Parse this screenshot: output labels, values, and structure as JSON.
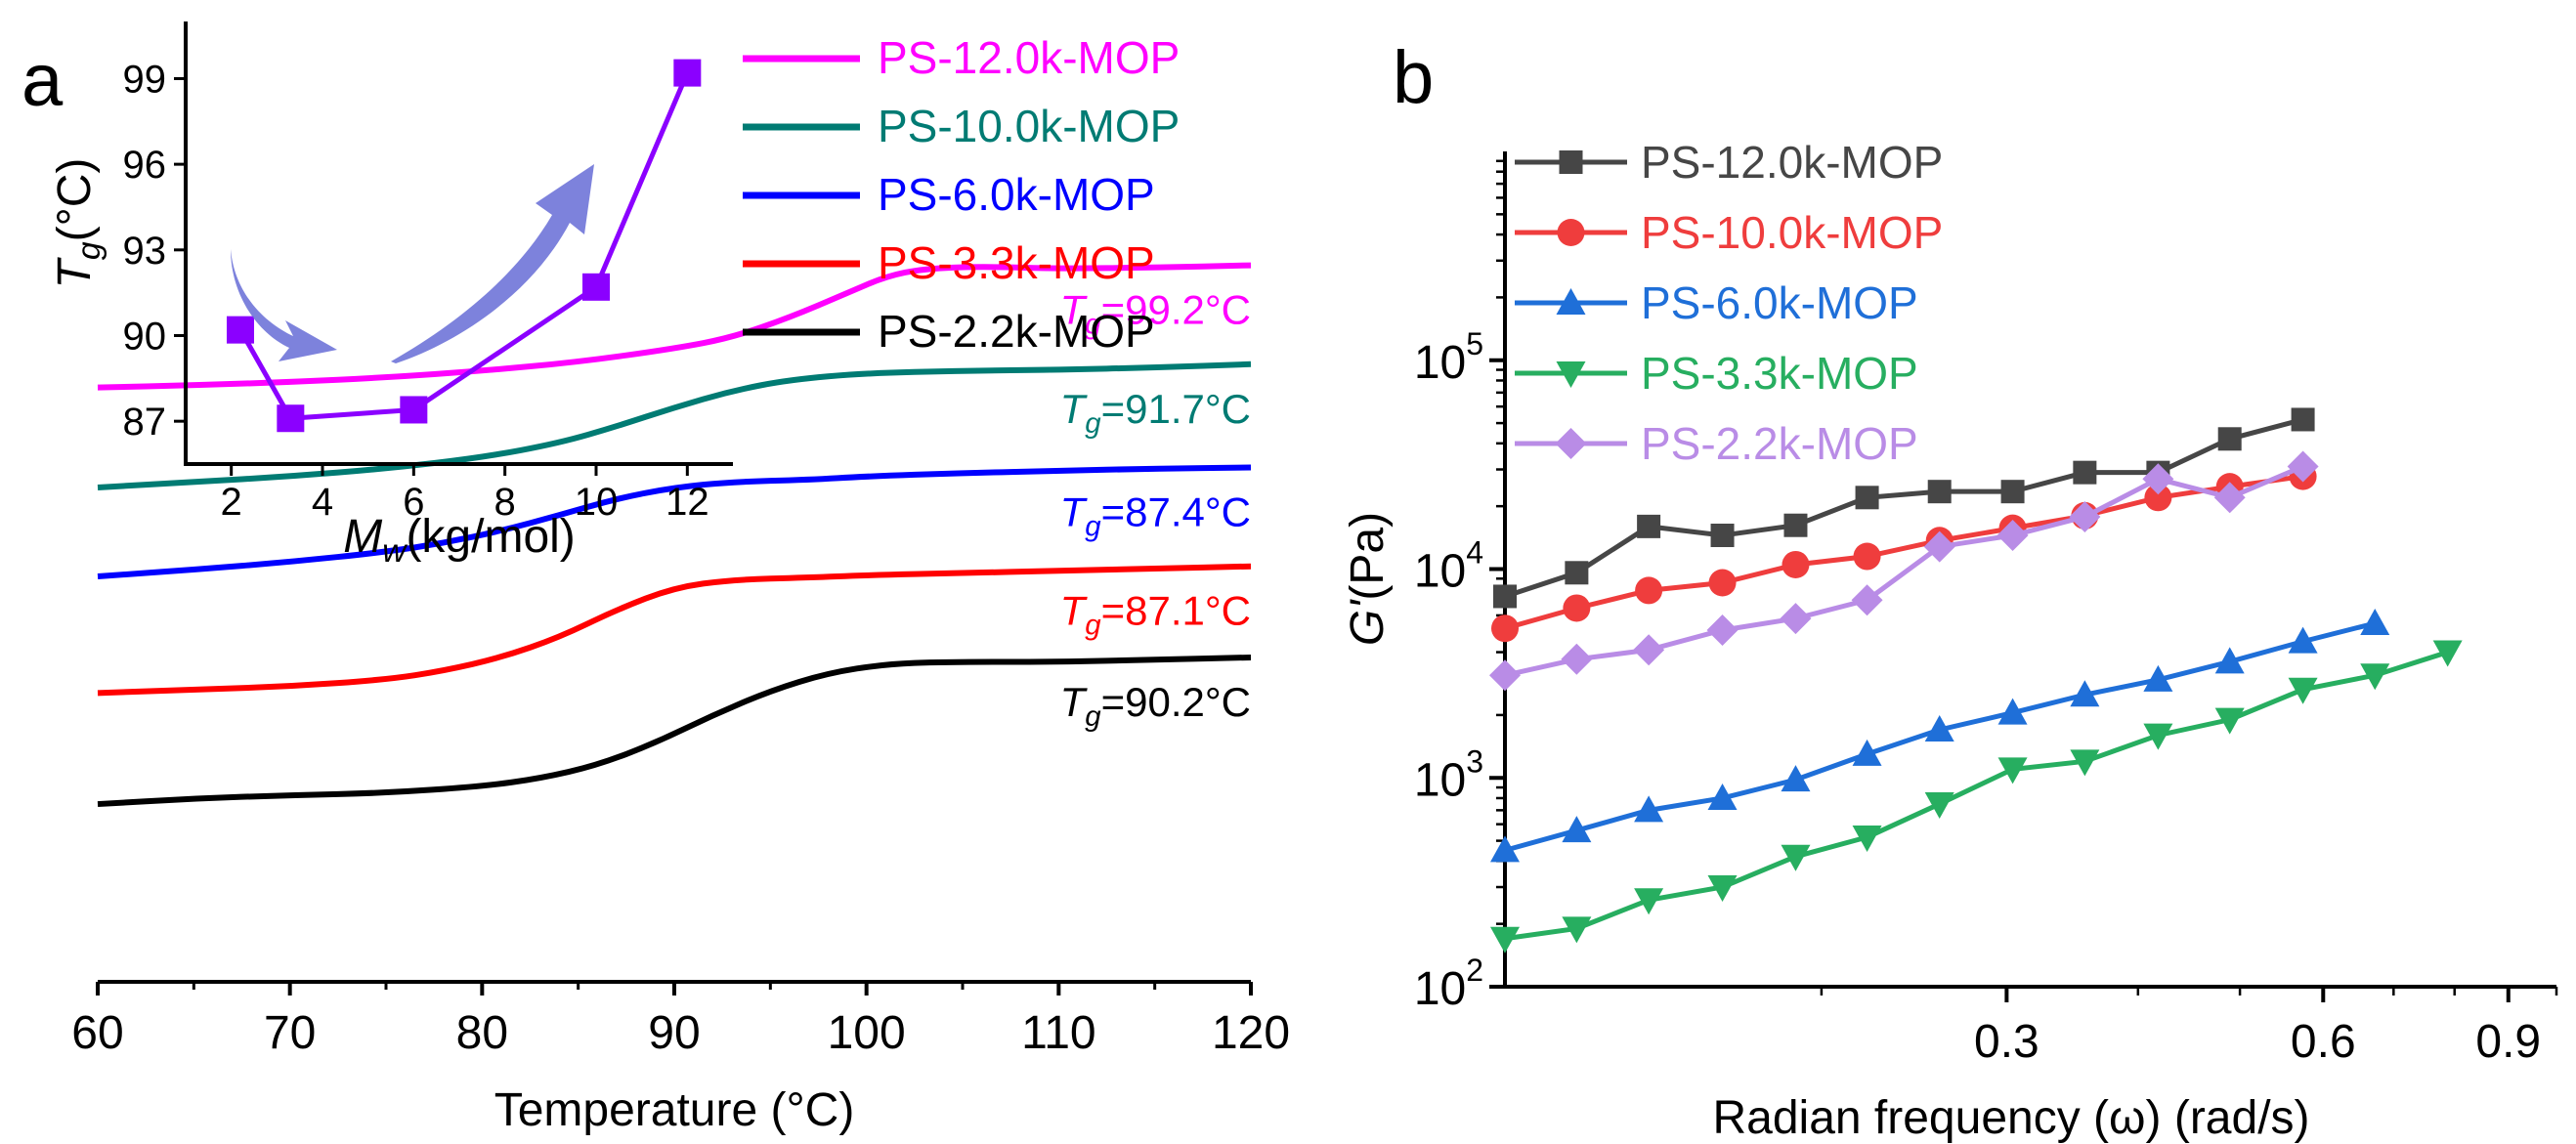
{
  "panel_a_label": "a",
  "panel_b_label": "b",
  "chart_data": [
    {
      "id": "dsc",
      "type": "line",
      "xlabel": "Temperature (°C)",
      "ylabel": "",
      "xlim": [
        60,
        120
      ],
      "ylim": [
        0,
        6.2
      ],
      "xticks": [
        60,
        70,
        80,
        90,
        100,
        110,
        120
      ],
      "legend_position": "top-right",
      "series": [
        {
          "name": "PS-12.0k-MOP",
          "color": "#ff00ff",
          "tg_label": "=99.2°C",
          "points": [
            [
              60,
              5.35
            ],
            [
              65,
              5.37
            ],
            [
              70,
              5.4
            ],
            [
              75,
              5.44
            ],
            [
              80,
              5.5
            ],
            [
              85,
              5.58
            ],
            [
              90,
              5.7
            ],
            [
              93,
              5.8
            ],
            [
              96,
              5.98
            ],
            [
              99,
              6.2
            ],
            [
              101,
              6.35
            ],
            [
              103,
              6.42
            ],
            [
              106,
              6.44
            ],
            [
              110,
              6.42
            ],
            [
              115,
              6.43
            ],
            [
              120,
              6.45
            ]
          ]
        },
        {
          "name": "PS-10.0k-MOP",
          "color": "#007b73",
          "tg_label": "=91.7°C",
          "points": [
            [
              60,
              4.45
            ],
            [
              65,
              4.5
            ],
            [
              70,
              4.55
            ],
            [
              75,
              4.62
            ],
            [
              80,
              4.72
            ],
            [
              84,
              4.85
            ],
            [
              87,
              5.0
            ],
            [
              90,
              5.17
            ],
            [
              93,
              5.32
            ],
            [
              96,
              5.42
            ],
            [
              100,
              5.48
            ],
            [
              105,
              5.5
            ],
            [
              110,
              5.51
            ],
            [
              115,
              5.53
            ],
            [
              120,
              5.56
            ]
          ]
        },
        {
          "name": "PS-6.0k-MOP",
          "color": "#0000ff",
          "tg_label": "=87.4°C",
          "points": [
            [
              60,
              3.65
            ],
            [
              65,
              3.71
            ],
            [
              70,
              3.78
            ],
            [
              75,
              3.87
            ],
            [
              78,
              3.95
            ],
            [
              81,
              4.06
            ],
            [
              84,
              4.2
            ],
            [
              87,
              4.35
            ],
            [
              90,
              4.45
            ],
            [
              93,
              4.5
            ],
            [
              97,
              4.52
            ],
            [
              100,
              4.55
            ],
            [
              105,
              4.58
            ],
            [
              110,
              4.6
            ],
            [
              115,
              4.62
            ],
            [
              120,
              4.63
            ]
          ]
        },
        {
          "name": "PS-3.3k-MOP",
          "color": "#ff0000",
          "tg_label": "=87.1°C",
          "points": [
            [
              60,
              2.6
            ],
            [
              65,
              2.63
            ],
            [
              70,
              2.66
            ],
            [
              75,
              2.72
            ],
            [
              78,
              2.8
            ],
            [
              81,
              2.92
            ],
            [
              84,
              3.1
            ],
            [
              87,
              3.35
            ],
            [
              90,
              3.55
            ],
            [
              93,
              3.62
            ],
            [
              97,
              3.64
            ],
            [
              100,
              3.66
            ],
            [
              105,
              3.68
            ],
            [
              110,
              3.7
            ],
            [
              115,
              3.72
            ],
            [
              120,
              3.74
            ]
          ]
        },
        {
          "name": "PS-2.2k-MOP",
          "color": "#000000",
          "tg_label": "=90.2°C",
          "points": [
            [
              60,
              1.6
            ],
            [
              65,
              1.65
            ],
            [
              70,
              1.68
            ],
            [
              75,
              1.7
            ],
            [
              80,
              1.76
            ],
            [
              83,
              1.83
            ],
            [
              86,
              1.95
            ],
            [
              89,
              2.15
            ],
            [
              92,
              2.4
            ],
            [
              95,
              2.62
            ],
            [
              98,
              2.78
            ],
            [
              101,
              2.86
            ],
            [
              104,
              2.88
            ],
            [
              110,
              2.88
            ],
            [
              115,
              2.9
            ],
            [
              120,
              2.92
            ]
          ]
        }
      ]
    },
    {
      "id": "tg-inset",
      "type": "line",
      "xlabel": "M",
      "xlabel_sub": "w",
      "xlabel_rest": "(kg/mol)",
      "ylabel": "T",
      "ylabel_sub": "g",
      "ylabel_rest": "(°C)",
      "xlim": [
        1,
        13
      ],
      "ylim": [
        85.5,
        101
      ],
      "xticks": [
        2,
        4,
        6,
        8,
        10,
        12
      ],
      "yticks": [
        87,
        90,
        93,
        96,
        99
      ],
      "color": "#8b00ff",
      "x": [
        2.2,
        3.3,
        6.0,
        10.0,
        12.0
      ],
      "y": [
        90.2,
        87.1,
        87.4,
        91.7,
        99.2
      ]
    },
    {
      "id": "rheology",
      "type": "line",
      "xlabel": "Radian frequency (ω) (rad/s)",
      "ylabel": "G'",
      "ylabel_rest": "(Pa)",
      "x_scale": "log",
      "y_scale": "log",
      "xlim": [
        0.1,
        1.0
      ],
      "ylim": [
        100,
        1000000
      ],
      "xticks": [
        0.3,
        0.6,
        0.9
      ],
      "xtick_labels": [
        "0.3",
        "0.6",
        "0.9"
      ],
      "yticks": [
        100,
        1000,
        10000,
        100000
      ],
      "ytick_base": "10",
      "ytick_exp": [
        "2",
        "3",
        "4",
        "5"
      ],
      "legend_position": "top-left",
      "series": [
        {
          "name": "PS-12.0k-MOP",
          "color": "#464646",
          "marker": "square",
          "x": [
            0.1,
            0.117,
            0.137,
            0.161,
            0.189,
            0.221,
            0.259,
            0.304,
            0.356,
            0.418,
            0.489,
            0.574,
            0.672,
            0.788
          ],
          "y": [
            7400,
            9600,
            16000,
            14500,
            16200,
            22000,
            23500,
            23500,
            29000,
            29000,
            42000,
            52000,
            null,
            null
          ]
        },
        {
          "name": "PS-10.0k-MOP",
          "color": "#ef3d3d",
          "marker": "circle",
          "x": [
            0.1,
            0.117,
            0.137,
            0.161,
            0.189,
            0.221,
            0.259,
            0.304,
            0.356,
            0.418,
            0.489,
            0.574,
            0.672,
            0.788
          ],
          "y": [
            5200,
            6500,
            7900,
            8600,
            10500,
            11500,
            13700,
            15700,
            18000,
            22000,
            24800,
            27800,
            null,
            null
          ]
        },
        {
          "name": "PS-6.0k-MOP",
          "color": "#1f6fd8",
          "marker": "triangle-up",
          "x": [
            0.1,
            0.117,
            0.137,
            0.161,
            0.189,
            0.221,
            0.259,
            0.304,
            0.356,
            0.418,
            0.489,
            0.574,
            0.672,
            0.788
          ],
          "y": [
            450,
            560,
            700,
            800,
            980,
            1300,
            1700,
            2050,
            2500,
            2950,
            3600,
            4500,
            5500,
            null
          ]
        },
        {
          "name": "PS-3.3k-MOP",
          "color": "#27ae60",
          "marker": "triangle-down",
          "x": [
            0.1,
            0.117,
            0.137,
            0.161,
            0.189,
            0.221,
            0.259,
            0.304,
            0.356,
            0.418,
            0.489,
            0.574,
            0.672,
            0.788
          ],
          "y": [
            170,
            190,
            260,
            300,
            420,
            520,
            750,
            1100,
            1200,
            1600,
            1900,
            2650,
            3100,
            4000
          ]
        },
        {
          "name": "PS-2.2k-MOP",
          "color": "#b98ce6",
          "marker": "diamond",
          "x": [
            0.1,
            0.117,
            0.137,
            0.161,
            0.189,
            0.221,
            0.259,
            0.304,
            0.356,
            0.418,
            0.489,
            0.574,
            0.672,
            0.788
          ],
          "y": [
            3100,
            3700,
            4100,
            5100,
            5800,
            7100,
            12800,
            14500,
            17800,
            27000,
            22000,
            31000,
            null,
            null
          ]
        }
      ]
    }
  ]
}
